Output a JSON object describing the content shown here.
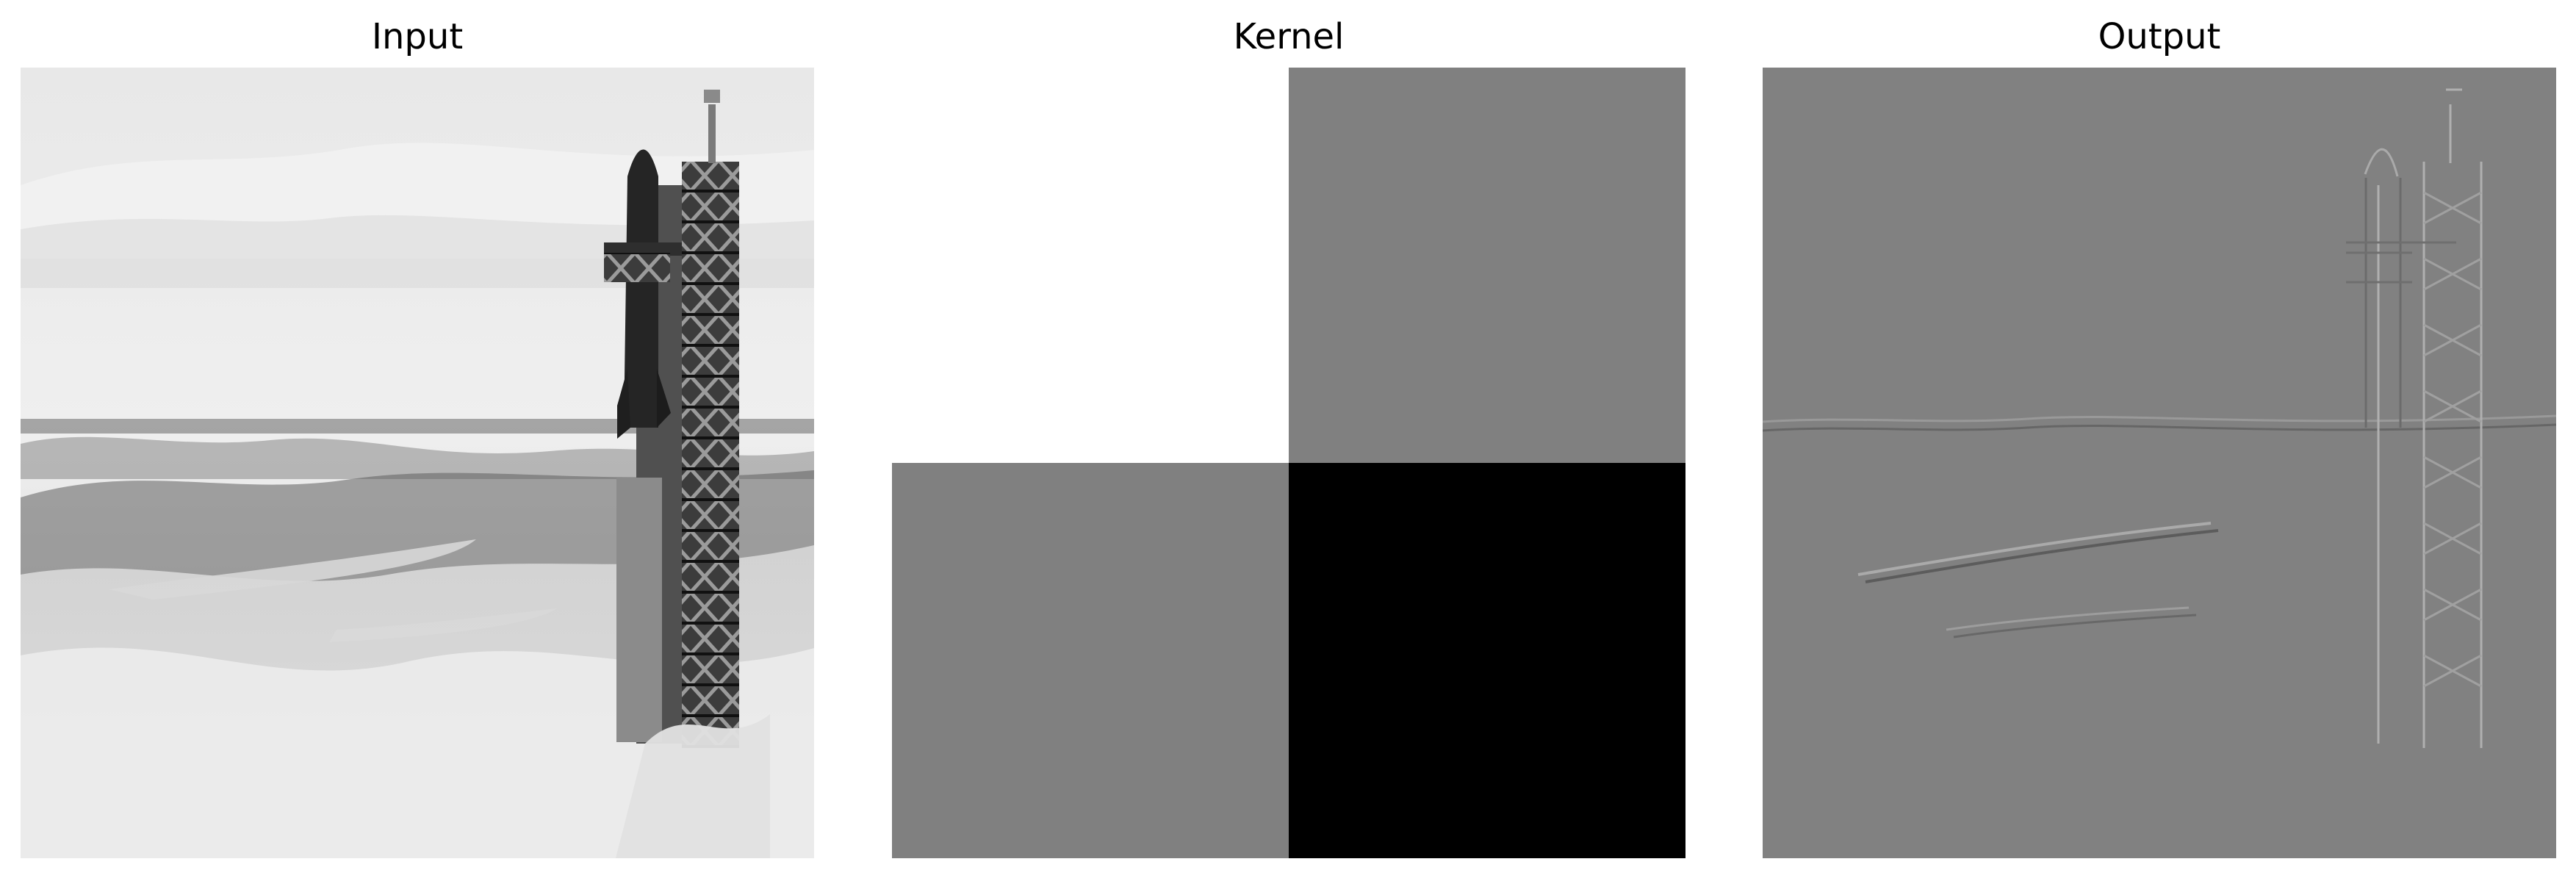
{
  "panels": {
    "input": {
      "title": "Input"
    },
    "kernel": {
      "title": "Kernel",
      "values": [
        [
          1,
          0
        ],
        [
          0,
          -1
        ]
      ]
    },
    "output": {
      "title": "Output"
    }
  }
}
